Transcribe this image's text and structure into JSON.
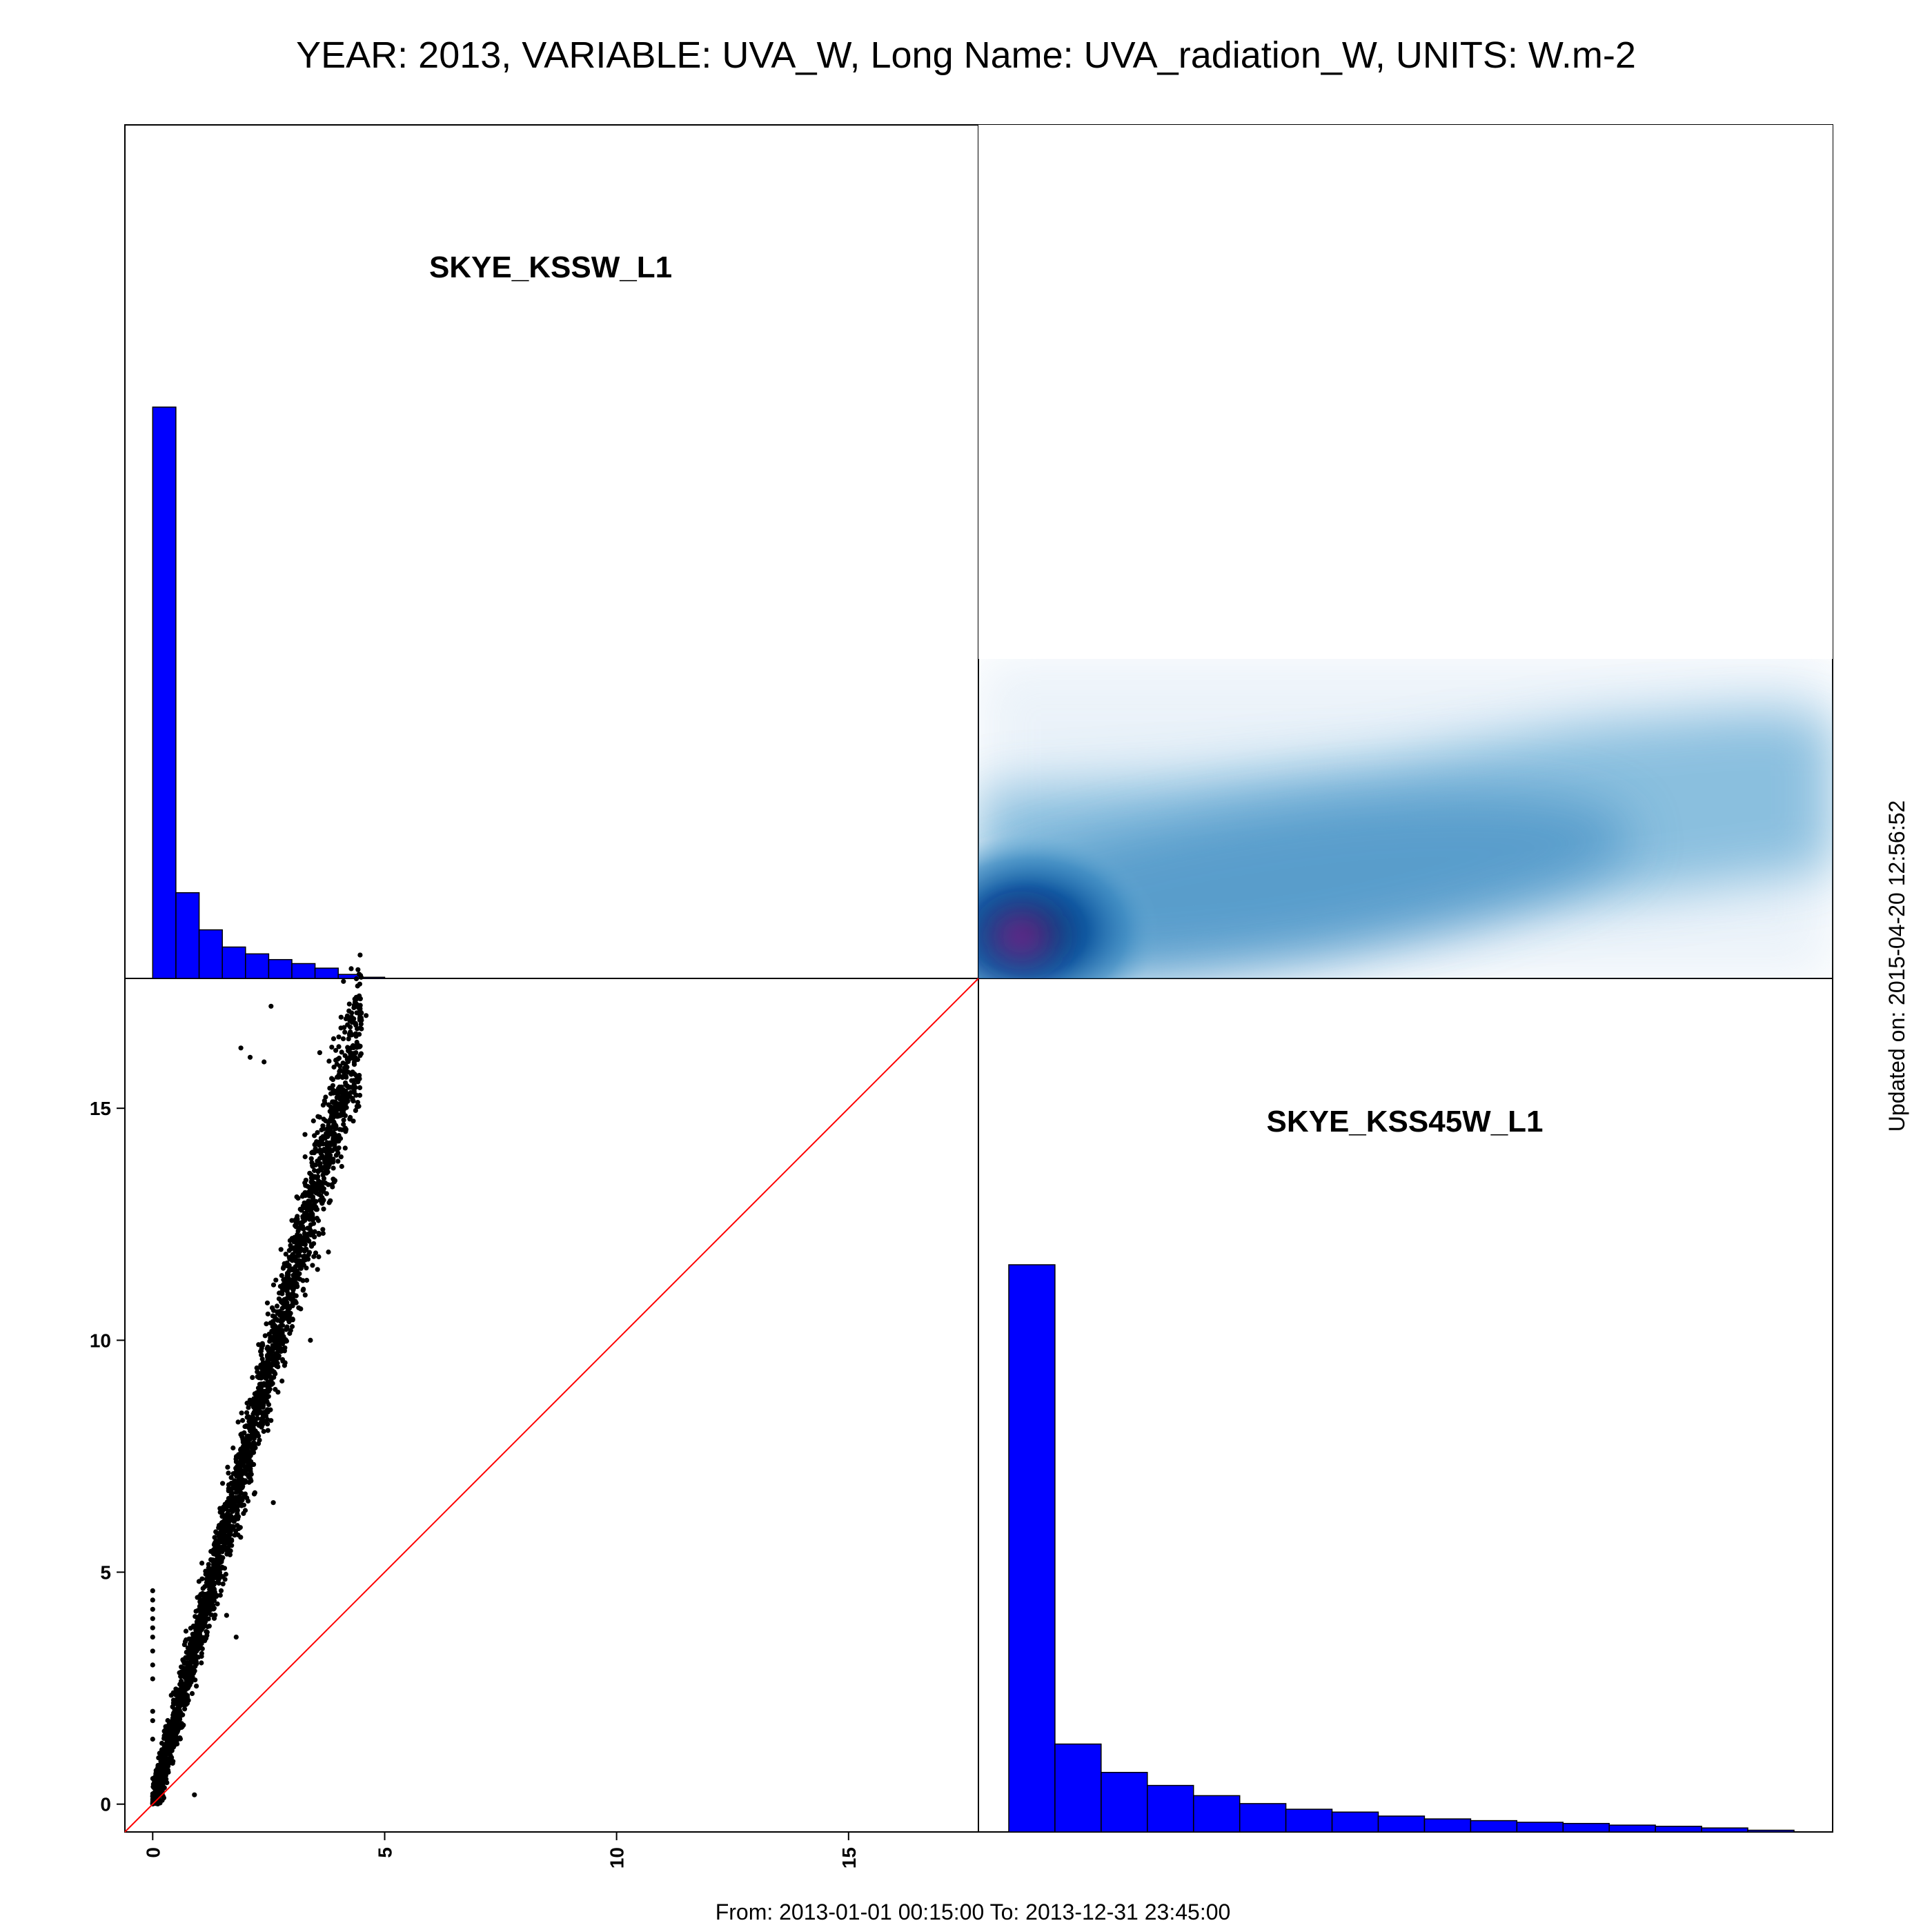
{
  "title": "YEAR: 2013, VARIABLE: UVA_W, Long Name: UVA_radiation_W, UNITS: W.m-2",
  "footer": "From: 2013-01-01 00:15:00 To: 2013-12-31 23:45:00",
  "updated": "Updated on: 2015-04-20 12:56:52",
  "colors": {
    "hist_fill": "#0000ff",
    "scatter": "#000000",
    "reference_line": "#ff0000",
    "density_low": "#ffffff",
    "density_mid": "#6baed6",
    "density_high": "#08306b",
    "density_peak": "#7b2a8c"
  },
  "chart_data": [
    {
      "type": "histogram",
      "panel": "top-left",
      "label": "SKYE_KSSW_L1",
      "bin_edges": [
        0,
        0.5,
        1.0,
        1.5,
        2.0,
        2.5,
        3.0,
        3.5,
        4.0,
        4.5,
        5.0
      ],
      "counts": [
        1000,
        150,
        85,
        55,
        43,
        33,
        26,
        18,
        7,
        2
      ],
      "xlim": [
        -0.6,
        17.8
      ]
    },
    {
      "type": "heatmap",
      "panel": "top-right",
      "description_source": "smoothed 2D density of SKYE_KSS45W_L1 vs SKYE_KSSW_L1",
      "peak": [
        0.2,
        0.8
      ]
    },
    {
      "type": "scatter",
      "panel": "bottom-left",
      "x_variable": "SKYE_KSSW_L1",
      "y_variable": "SKYE_KSS45W_L1",
      "xlim": [
        -0.6,
        17.8
      ],
      "ylim": [
        -0.6,
        17.8
      ],
      "xticks": [
        0,
        5,
        10,
        15
      ],
      "yticks": [
        0,
        5,
        10,
        15
      ],
      "reference_line": "y = x",
      "trend": {
        "slope": 3.75,
        "x_range": [
          0,
          4.5
        ]
      },
      "highlights": [
        [
          0.0,
          4.6
        ],
        [
          0.0,
          4.4
        ],
        [
          0.0,
          4.2
        ],
        [
          0.0,
          4.0
        ],
        [
          0.0,
          3.8
        ],
        [
          0.0,
          3.6
        ],
        [
          0.0,
          3.3
        ],
        [
          0.0,
          3.0
        ],
        [
          0.0,
          2.7
        ],
        [
          0.0,
          2.0
        ],
        [
          0.0,
          1.8
        ],
        [
          0.0,
          1.4
        ],
        [
          2.55,
          17.2
        ],
        [
          1.9,
          16.3
        ],
        [
          2.1,
          16.1
        ],
        [
          2.4,
          16.0
        ],
        [
          3.9,
          16.5
        ],
        [
          4.5,
          16.9
        ],
        [
          4.6,
          17.0
        ],
        [
          4.2,
          16.8
        ],
        [
          3.6,
          16.2
        ],
        [
          0.9,
          0.2
        ],
        [
          1.8,
          3.6
        ],
        [
          2.6,
          6.5
        ],
        [
          3.4,
          10.0
        ]
      ]
    },
    {
      "type": "histogram",
      "panel": "bottom-right",
      "label": "SKYE_KSS45W_L1",
      "bin_edges": [
        0,
        1,
        2,
        3,
        4,
        5,
        6,
        7,
        8,
        9,
        10,
        11,
        12,
        13,
        14,
        15,
        16,
        17
      ],
      "counts": [
        1000,
        155,
        105,
        82,
        64,
        50,
        40,
        35,
        28,
        23,
        20,
        17,
        15,
        12,
        10,
        7,
        3
      ],
      "xlim": [
        -0.6,
        17.8
      ]
    }
  ]
}
